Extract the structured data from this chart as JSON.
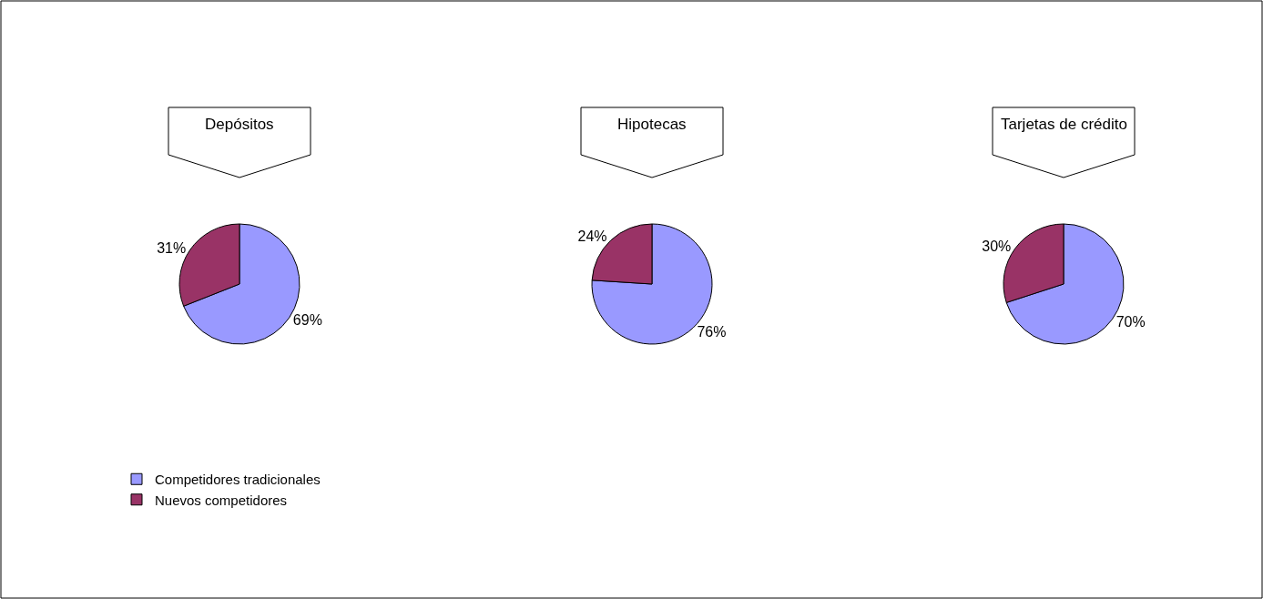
{
  "chart_data": [
    {
      "type": "pie",
      "title": "Depósitos",
      "categories": [
        "Competidores tradicionales",
        "Nuevos competidores"
      ],
      "values": [
        69,
        31
      ],
      "value_labels": [
        "69%",
        "31%"
      ],
      "colors": [
        "#9999ff",
        "#993366"
      ],
      "legend": "bottom left"
    },
    {
      "type": "pie",
      "title": "Hipotecas",
      "categories": [
        null,
        null
      ],
      "values": [
        76,
        24
      ],
      "value_labels": [
        "76%",
        "24%"
      ],
      "colors": [
        "#9999ff",
        "#993366"
      ]
    },
    {
      "type": "pie",
      "title": "Tarjetas de crédito",
      "categories": [
        null,
        null
      ],
      "values": [
        70,
        30
      ],
      "value_labels": [
        "70%",
        "30%"
      ],
      "colors": [
        "#9999ff",
        "#993366"
      ]
    }
  ]
}
